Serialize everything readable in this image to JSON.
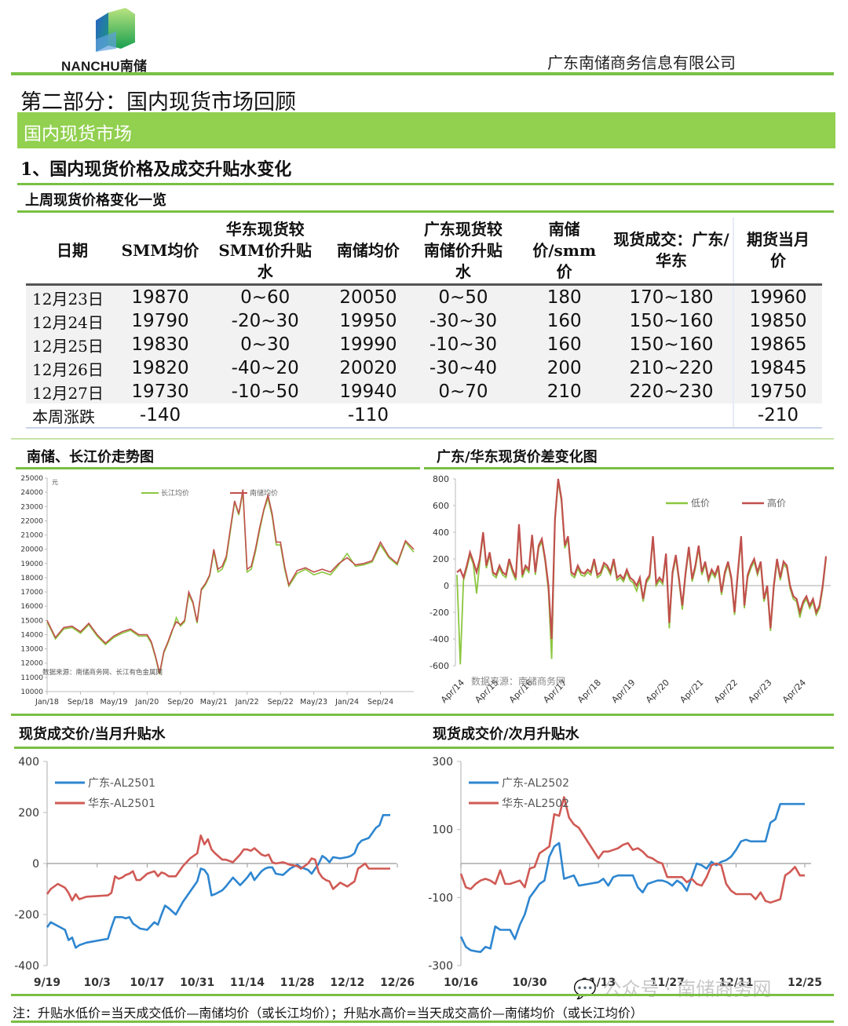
{
  "header": {
    "logo_text": "NANCHU南储",
    "company": "广东南储商务信息有限公司"
  },
  "part_title": "第二部分：国内现货市场回顾",
  "banner": "国内现货市场",
  "section_title": "1、国内现货价格及成交升贴水变化",
  "table": {
    "title": "上周现货价格变化一览",
    "headers": [
      "日期",
      "SMM均价",
      "华东现货较SMM价升贴水",
      "南储均价",
      "广东现货较南储价升贴水",
      "南储价/smm价",
      "现货成交：广东/华东",
      "期货当月价"
    ],
    "rows": [
      [
        "12月23日",
        "19870",
        "0~60",
        "20050",
        "0~50",
        "180",
        "170~180",
        "19960"
      ],
      [
        "12月24日",
        "19790",
        "-20~30",
        "19950",
        "-30~30",
        "160",
        "150~160",
        "19850"
      ],
      [
        "12月25日",
        "19830",
        "0~30",
        "19990",
        "-10~30",
        "160",
        "150~160",
        "19865"
      ],
      [
        "12月26日",
        "19820",
        "-40~20",
        "20020",
        "-30~40",
        "200",
        "210~220",
        "19845"
      ],
      [
        "12月27日",
        "19730",
        "-10~50",
        "19940",
        "0~70",
        "210",
        "220~230",
        "19750"
      ]
    ],
    "week_change": {
      "label": "本周涨跌",
      "smm": "-140",
      "nanchu": "-110",
      "futures": "-210"
    }
  },
  "charts_titles": {
    "c1": "南储、长江价走势图",
    "c2": "广东/华东现货价差变化图",
    "c3": "现货成交价/当月升贴水",
    "c4": "现货成交价/次月升贴水"
  },
  "note": "注：升贴水低价=当天成交低价—南储均价（或长江均价）；升贴水高价=当天成交高价—南储均价（或长江均价）",
  "watermark": "公众号 · 南储商务网",
  "colors": {
    "green_rule": "#79c043",
    "banner": "#92d050",
    "red": "#c0504d",
    "green": "#8cc63f",
    "blue": "#2e86d0",
    "red2": "#d9534f"
  },
  "chart_data": [
    {
      "type": "line",
      "title": "南储、长江价走势图",
      "unit": "元",
      "ylim": [
        10000,
        25000
      ],
      "yticks": [
        10000,
        11000,
        12000,
        13000,
        14000,
        15000,
        16000,
        17000,
        18000,
        19000,
        20000,
        21000,
        22000,
        23000,
        24000,
        25000
      ],
      "x_tick_labels": [
        "Jan/18",
        "Sep/18",
        "May/19",
        "Jan/20",
        "Sep/20",
        "May/21",
        "Jan/22",
        "Sep/22",
        "May/23",
        "Jan/24",
        "Sep/24"
      ],
      "legend": [
        "长江均价",
        "南储均价"
      ],
      "source_text": "数据来源：南储商务网、长江有色金属网",
      "x": [
        0,
        2,
        4,
        6,
        8,
        10,
        12,
        14,
        16,
        18,
        20,
        22,
        24,
        25,
        26,
        27,
        28,
        29,
        30,
        31,
        32,
        33,
        34,
        35,
        36,
        37,
        38,
        39,
        40,
        41,
        42,
        43,
        44,
        45,
        46,
        47,
        48,
        49,
        50,
        51,
        52,
        53,
        54,
        55,
        56,
        57,
        58,
        60,
        62,
        64,
        66,
        68,
        70,
        72,
        74,
        76,
        78,
        80,
        82,
        84,
        86,
        88
      ],
      "series": [
        {
          "name": "南储均价",
          "values": [
            15000,
            13800,
            14500,
            14600,
            14200,
            14800,
            14000,
            13400,
            13900,
            14200,
            14400,
            14000,
            14000,
            13500,
            12500,
            11300,
            12800,
            13500,
            14300,
            14900,
            14700,
            15000,
            17000,
            16300,
            14900,
            17200,
            17600,
            18200,
            20000,
            18600,
            18800,
            19500,
            21500,
            23400,
            22500,
            24200,
            18600,
            18800,
            20000,
            21500,
            22800,
            23800,
            22500,
            20500,
            20500,
            18800,
            17500,
            18500,
            18700,
            18400,
            18600,
            18400,
            19000,
            19400,
            18900,
            19000,
            19200,
            20500,
            19500,
            19000,
            20600,
            20000
          ]
        },
        {
          "name": "长江均价",
          "values": [
            14900,
            13700,
            14400,
            14500,
            14100,
            14700,
            13900,
            13300,
            13800,
            14100,
            14300,
            13900,
            13900,
            13400,
            12400,
            11200,
            12700,
            13400,
            14200,
            15200,
            14600,
            14900,
            16800,
            16200,
            14800,
            17100,
            17500,
            18100,
            19800,
            18400,
            18600,
            19300,
            21300,
            23300,
            22400,
            24000,
            18400,
            18600,
            19800,
            21300,
            22700,
            23600,
            22300,
            20300,
            20300,
            18600,
            17400,
            18300,
            18600,
            18200,
            18400,
            18200,
            18900,
            19700,
            18800,
            18900,
            19100,
            20300,
            19400,
            18900,
            20500,
            19800
          ]
        }
      ]
    },
    {
      "type": "line",
      "title": "广东/华东现货价差变化图",
      "ylim": [
        -600,
        800
      ],
      "yticks": [
        -600,
        -400,
        -200,
        0,
        200,
        400,
        600,
        800
      ],
      "x_tick_labels": [
        "Apr/14",
        "Apr/15",
        "Apr/16",
        "Apr/17",
        "Apr/18",
        "Apr/19",
        "Apr/20",
        "Apr/21",
        "Apr/22",
        "Apr/23",
        "Apr/24"
      ],
      "legend": [
        "低价",
        "高价"
      ],
      "source_text": "数据来源：南储商务网",
      "series": [
        {
          "name": "高价",
          "values": [
            100,
            120,
            60,
            150,
            250,
            180,
            100,
            200,
            400,
            150,
            250,
            100,
            80,
            150,
            100,
            80,
            200,
            120,
            60,
            460,
            80,
            150,
            120,
            380,
            100,
            300,
            350,
            200,
            0,
            -400,
            500,
            800,
            650,
            300,
            370,
            100,
            80,
            150,
            100,
            90,
            120,
            100,
            200,
            80,
            100,
            170,
            150,
            100,
            200,
            60,
            80,
            50,
            120,
            60,
            40,
            0,
            60,
            -100,
            40,
            80,
            370,
            20,
            60,
            30,
            240,
            -280,
            100,
            230,
            50,
            -150,
            100,
            290,
            50,
            150,
            300,
            100,
            180,
            50,
            120,
            80,
            150,
            -50,
            100,
            180,
            60,
            -200,
            100,
            370,
            -150,
            80,
            150,
            200,
            100,
            180,
            -100,
            0,
            -320,
            0,
            200,
            60,
            180,
            150,
            0,
            -80,
            -100,
            -200,
            -120,
            -80,
            -150,
            -100,
            -200,
            -150,
            0,
            220
          ]
        },
        {
          "name": "低价",
          "values": [
            80,
            -590,
            40,
            130,
            230,
            160,
            -60,
            180,
            380,
            130,
            230,
            80,
            60,
            130,
            80,
            60,
            180,
            100,
            40,
            440,
            60,
            130,
            100,
            360,
            80,
            280,
            330,
            180,
            -40,
            -550,
            480,
            780,
            630,
            280,
            350,
            80,
            60,
            130,
            80,
            70,
            100,
            80,
            180,
            60,
            80,
            150,
            130,
            80,
            180,
            40,
            60,
            30,
            100,
            40,
            20,
            -40,
            40,
            -120,
            20,
            60,
            350,
            0,
            40,
            10,
            220,
            -320,
            80,
            210,
            30,
            -180,
            80,
            270,
            30,
            130,
            280,
            80,
            160,
            30,
            100,
            60,
            130,
            -70,
            80,
            160,
            40,
            -220,
            80,
            350,
            -170,
            60,
            130,
            180,
            80,
            160,
            -120,
            -20,
            -340,
            -20,
            180,
            40,
            160,
            130,
            -20,
            -100,
            -120,
            -240,
            -140,
            -100,
            -170,
            -120,
            -220,
            -170,
            -20,
            200
          ]
        }
      ]
    },
    {
      "type": "line",
      "title": "现货成交价/当月升贴水",
      "ylim": [
        -400,
        400
      ],
      "yticks": [
        -400,
        -200,
        0,
        200,
        400
      ],
      "x_tick_labels": [
        "9/19",
        "10/3",
        "10/17",
        "10/31",
        "11/14",
        "11/28",
        "12/12",
        "12/26"
      ],
      "legend": [
        "广东-AL2501",
        "华东-AL2501"
      ],
      "x_days": [
        0,
        1,
        3,
        5,
        6,
        7,
        8,
        9,
        11,
        17,
        18,
        19,
        20,
        21,
        22,
        23,
        24,
        25,
        26,
        28,
        30,
        31,
        32,
        33,
        34,
        36,
        38,
        40,
        42,
        43,
        44,
        45,
        46,
        47,
        49,
        50,
        52,
        54,
        55,
        56,
        57,
        58,
        60,
        61,
        62,
        63,
        64,
        66,
        68,
        70,
        71,
        72,
        73,
        74,
        75,
        76,
        77,
        78,
        79,
        80,
        82,
        84,
        85,
        86,
        87,
        88,
        89,
        90,
        92,
        93,
        94,
        95,
        96
      ],
      "series": [
        {
          "name": "广东-AL2501",
          "color": "#2e86d0",
          "values": [
            -250,
            -230,
            -245,
            -260,
            -300,
            -290,
            -330,
            -320,
            -310,
            -295,
            -250,
            -210,
            -210,
            -210,
            -215,
            -210,
            -235,
            -245,
            -255,
            -260,
            -230,
            -240,
            -200,
            -165,
            -175,
            -200,
            -150,
            -110,
            -70,
            -20,
            -25,
            -45,
            -125,
            -120,
            -105,
            -90,
            -55,
            -85,
            -70,
            -55,
            -35,
            -65,
            -30,
            -20,
            -15,
            -15,
            -40,
            -45,
            -20,
            -5,
            -15,
            -20,
            -25,
            -40,
            -20,
            0,
            30,
            20,
            5,
            25,
            20,
            25,
            30,
            40,
            75,
            90,
            95,
            100,
            140,
            150,
            190,
            190,
            190
          ]
        },
        {
          "name": "华东-AL2501",
          "color": "#d05a55",
          "values": [
            -120,
            -100,
            -80,
            -95,
            -115,
            -145,
            -120,
            -140,
            -130,
            -125,
            -115,
            -50,
            -60,
            -55,
            -45,
            -40,
            -30,
            -65,
            -65,
            -40,
            -30,
            -50,
            -35,
            -40,
            -50,
            -50,
            -10,
            20,
            40,
            110,
            75,
            95,
            55,
            40,
            15,
            15,
            5,
            35,
            55,
            55,
            50,
            60,
            35,
            30,
            35,
            5,
            0,
            5,
            -5,
            -10,
            -20,
            -10,
            0,
            20,
            15,
            -35,
            -55,
            -65,
            -70,
            -100,
            -75,
            -90,
            -80,
            -70,
            -20,
            -10,
            0,
            -20,
            -20,
            -20,
            -20,
            -20,
            -20
          ]
        }
      ]
    },
    {
      "type": "line",
      "title": "现货成交价/次月升贴水",
      "ylim": [
        -300,
        300
      ],
      "yticks": [
        -300,
        -100,
        100,
        300
      ],
      "x_tick_labels": [
        "10/16",
        "10/30",
        "11/13",
        "11/27",
        "12/11",
        "12/25"
      ],
      "legend": [
        "广东-AL2502",
        "华东-AL2502"
      ],
      "x_days": [
        0,
        1,
        2,
        3,
        4,
        5,
        6,
        7,
        8,
        9,
        10,
        11,
        12,
        13,
        14,
        15,
        16,
        17,
        18,
        19,
        20,
        21,
        22,
        23,
        24,
        26,
        28,
        29,
        30,
        31,
        32,
        33,
        34,
        35,
        36,
        37,
        38,
        39,
        40,
        41,
        42,
        43,
        44,
        45,
        46,
        47,
        48,
        49,
        50,
        51,
        52,
        53,
        54,
        55,
        56,
        57,
        58,
        59,
        60,
        61,
        62,
        63,
        64,
        65,
        66,
        67,
        68,
        69,
        70
      ],
      "series": [
        {
          "name": "广东-AL2502",
          "color": "#2e86d0",
          "values": [
            -215,
            -245,
            -255,
            -258,
            -260,
            -245,
            -250,
            -185,
            -195,
            -195,
            -195,
            -222,
            -180,
            -150,
            -100,
            -80,
            -60,
            -50,
            20,
            50,
            60,
            -45,
            -40,
            -35,
            -65,
            -60,
            -55,
            -45,
            -65,
            -40,
            -35,
            -35,
            -35,
            -35,
            -70,
            -85,
            -60,
            -55,
            -50,
            -50,
            -55,
            -65,
            -50,
            -60,
            -80,
            -40,
            0,
            -5,
            -15,
            5,
            -5,
            5,
            10,
            20,
            40,
            65,
            70,
            65,
            65,
            65,
            65,
            120,
            130,
            175,
            175,
            175,
            175,
            175,
            175
          ]
        },
        {
          "name": "华东-AL2502",
          "color": "#d05a55",
          "values": [
            -30,
            -70,
            -75,
            -60,
            -50,
            -45,
            -50,
            -60,
            -20,
            -60,
            -60,
            -55,
            -50,
            -70,
            -15,
            -10,
            30,
            40,
            50,
            145,
            140,
            195,
            135,
            115,
            105,
            60,
            15,
            35,
            35,
            40,
            45,
            55,
            60,
            40,
            45,
            35,
            20,
            15,
            5,
            0,
            -40,
            -40,
            -40,
            -40,
            -55,
            -45,
            -60,
            -65,
            -40,
            -5,
            0,
            -5,
            -60,
            -80,
            -90,
            -90,
            -90,
            -90,
            -105,
            -85,
            -110,
            -115,
            -110,
            -105,
            -35,
            -25,
            -10,
            -35,
            -35
          ]
        }
      ]
    }
  ]
}
